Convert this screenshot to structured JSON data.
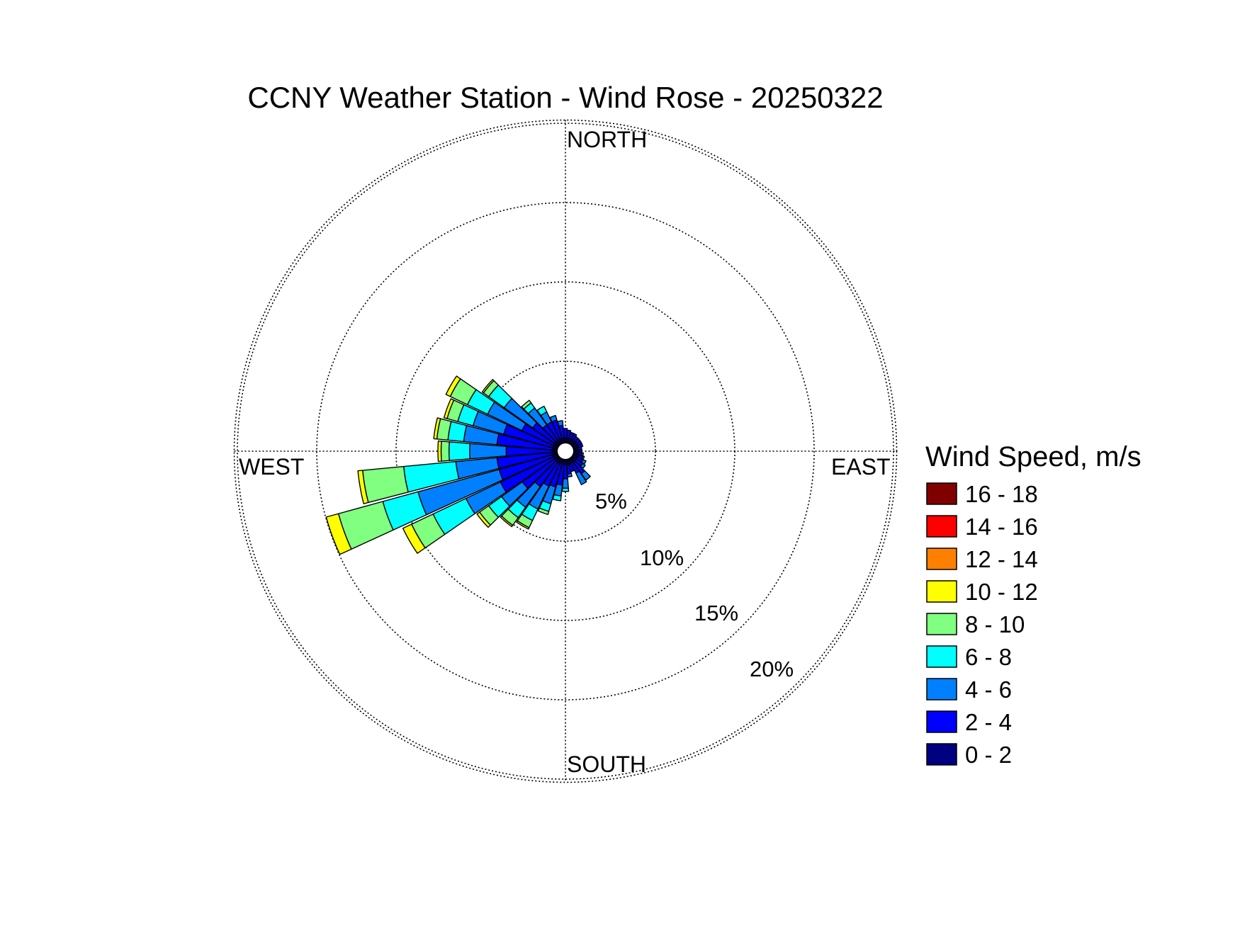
{
  "chart_data": {
    "type": "wind_rose",
    "title": "CCNY Weather Station - Wind Rose - 20250322",
    "direction_labels": {
      "north": "NORTH",
      "east": "EAST",
      "south": "SOUTH",
      "west": "WEST"
    },
    "radial_axis": {
      "unit": "%",
      "max": 20,
      "ticks": [
        5,
        10,
        15,
        20
      ],
      "tick_labels": [
        "5%",
        "10%",
        "15%",
        "20%"
      ]
    },
    "grid": true,
    "legend": {
      "title": "Wind Speed, m/s",
      "placement": "right",
      "bins": [
        {
          "label": "16 - 18",
          "color": "#800000"
        },
        {
          "label": "14 - 16",
          "color": "#ff0000"
        },
        {
          "label": "12 - 14",
          "color": "#ff8000"
        },
        {
          "label": "10 - 12",
          "color": "#ffff00"
        },
        {
          "label": "8 - 10",
          "color": "#80ff80"
        },
        {
          "label": "6 - 8",
          "color": "#00ffff"
        },
        {
          "label": "4 - 6",
          "color": "#0080ff"
        },
        {
          "label": "2 - 4",
          "color": "#0000ff"
        },
        {
          "label": "0 - 2",
          "color": "#000080"
        }
      ]
    },
    "speed_bins": [
      "0 - 2",
      "2 - 4",
      "4 - 6",
      "6 - 8",
      "8 - 10",
      "10 - 12",
      "12 - 14",
      "14 - 16",
      "16 - 18"
    ],
    "sector_width_deg": 10,
    "sectors": [
      {
        "direction_deg": 160,
        "cumulative_pct": [
          0.3,
          0.8
        ]
      },
      {
        "direction_deg": 150,
        "cumulative_pct": [
          0.3,
          1.0,
          1.8
        ]
      },
      {
        "direction_deg": 140,
        "cumulative_pct": [
          0.3,
          1.2,
          1.7
        ]
      },
      {
        "direction_deg": 130,
        "cumulative_pct": [
          0.3,
          0.8,
          1.0
        ]
      },
      {
        "direction_deg": 120,
        "cumulative_pct": [
          0.3,
          0.7,
          0.9
        ]
      },
      {
        "direction_deg": 110,
        "cumulative_pct": [
          0.3,
          0.6,
          0.7
        ]
      },
      {
        "direction_deg": 100,
        "cumulative_pct": [
          0.3,
          0.5,
          0.6
        ]
      },
      {
        "direction_deg": 90,
        "cumulative_pct": [
          0.3,
          0.5
        ]
      },
      {
        "direction_deg": 80,
        "cumulative_pct": [
          0.3,
          0.5
        ]
      },
      {
        "direction_deg": 70,
        "cumulative_pct": [
          0.3,
          0.6
        ]
      },
      {
        "direction_deg": 60,
        "cumulative_pct": [
          0.3,
          0.6
        ]
      },
      {
        "direction_deg": 50,
        "cumulative_pct": [
          0.3,
          0.6
        ]
      },
      {
        "direction_deg": 40,
        "cumulative_pct": [
          0.3,
          0.6
        ]
      },
      {
        "direction_deg": 30,
        "cumulative_pct": [
          0.3,
          0.7
        ]
      },
      {
        "direction_deg": 20,
        "cumulative_pct": [
          0.3,
          0.7
        ]
      },
      {
        "direction_deg": 10,
        "cumulative_pct": [
          0.3,
          0.8
        ]
      },
      {
        "direction_deg": 0,
        "cumulative_pct": [
          0.3,
          0.9
        ]
      },
      {
        "direction_deg": 350,
        "cumulative_pct": [
          0.3,
          1.1,
          1.4
        ]
      },
      {
        "direction_deg": 340,
        "cumulative_pct": [
          0.3,
          1.5,
          1.8
        ]
      },
      {
        "direction_deg": 330,
        "cumulative_pct": [
          0.3,
          1.5,
          2.2,
          2.6
        ]
      },
      {
        "direction_deg": 320,
        "cumulative_pct": [
          0.3,
          1.5,
          2.8,
          3.2,
          3.4
        ]
      },
      {
        "direction_deg": 310,
        "cumulative_pct": [
          0.3,
          2.0,
          4.2,
          5.4,
          5.8,
          5.9
        ]
      },
      {
        "direction_deg": 300,
        "cumulative_pct": [
          0.3,
          2.5,
          4.9,
          6.3,
          7.5,
          7.8
        ]
      },
      {
        "direction_deg": 290,
        "cumulative_pct": [
          0.3,
          3.5,
          5.5,
          6.5,
          7.2,
          7.4
        ]
      },
      {
        "direction_deg": 280,
        "cumulative_pct": [
          0.3,
          3.8,
          5.9,
          6.9,
          7.6,
          7.8
        ]
      },
      {
        "direction_deg": 270,
        "cumulative_pct": [
          0.3,
          3.2,
          5.5,
          6.8,
          7.3,
          7.5
        ]
      },
      {
        "direction_deg": 260,
        "cumulative_pct": [
          0.3,
          3.8,
          6.4,
          9.7,
          12.3,
          12.6
        ]
      },
      {
        "direction_deg": 250,
        "cumulative_pct": [
          0.3,
          3.8,
          9.1,
          11.4,
          14.3,
          15.1
        ]
      },
      {
        "direction_deg": 240,
        "cumulative_pct": [
          0.3,
          4.0,
          6.4,
          8.7,
          10.2,
          10.8
        ]
      },
      {
        "direction_deg": 230,
        "cumulative_pct": [
          0.3,
          2.8,
          4.4,
          5.4,
          6.1,
          6.3
        ]
      },
      {
        "direction_deg": 220,
        "cumulative_pct": [
          0.3,
          2.2,
          3.8,
          4.6,
          5.2,
          5.3
        ]
      },
      {
        "direction_deg": 210,
        "cumulative_pct": [
          0.3,
          1.9,
          3.5,
          4.3,
          4.8,
          4.9
        ]
      },
      {
        "direction_deg": 200,
        "cumulative_pct": [
          0.3,
          1.8,
          2.9,
          3.4,
          3.6
        ]
      },
      {
        "direction_deg": 190,
        "cumulative_pct": [
          0.3,
          1.6,
          2.3,
          2.6
        ]
      },
      {
        "direction_deg": 180,
        "cumulative_pct": [
          0.3,
          1.2,
          1.8,
          2.0
        ]
      },
      {
        "direction_deg": 170,
        "cumulative_pct": [
          0.3,
          0.9,
          1.1
        ]
      }
    ]
  }
}
